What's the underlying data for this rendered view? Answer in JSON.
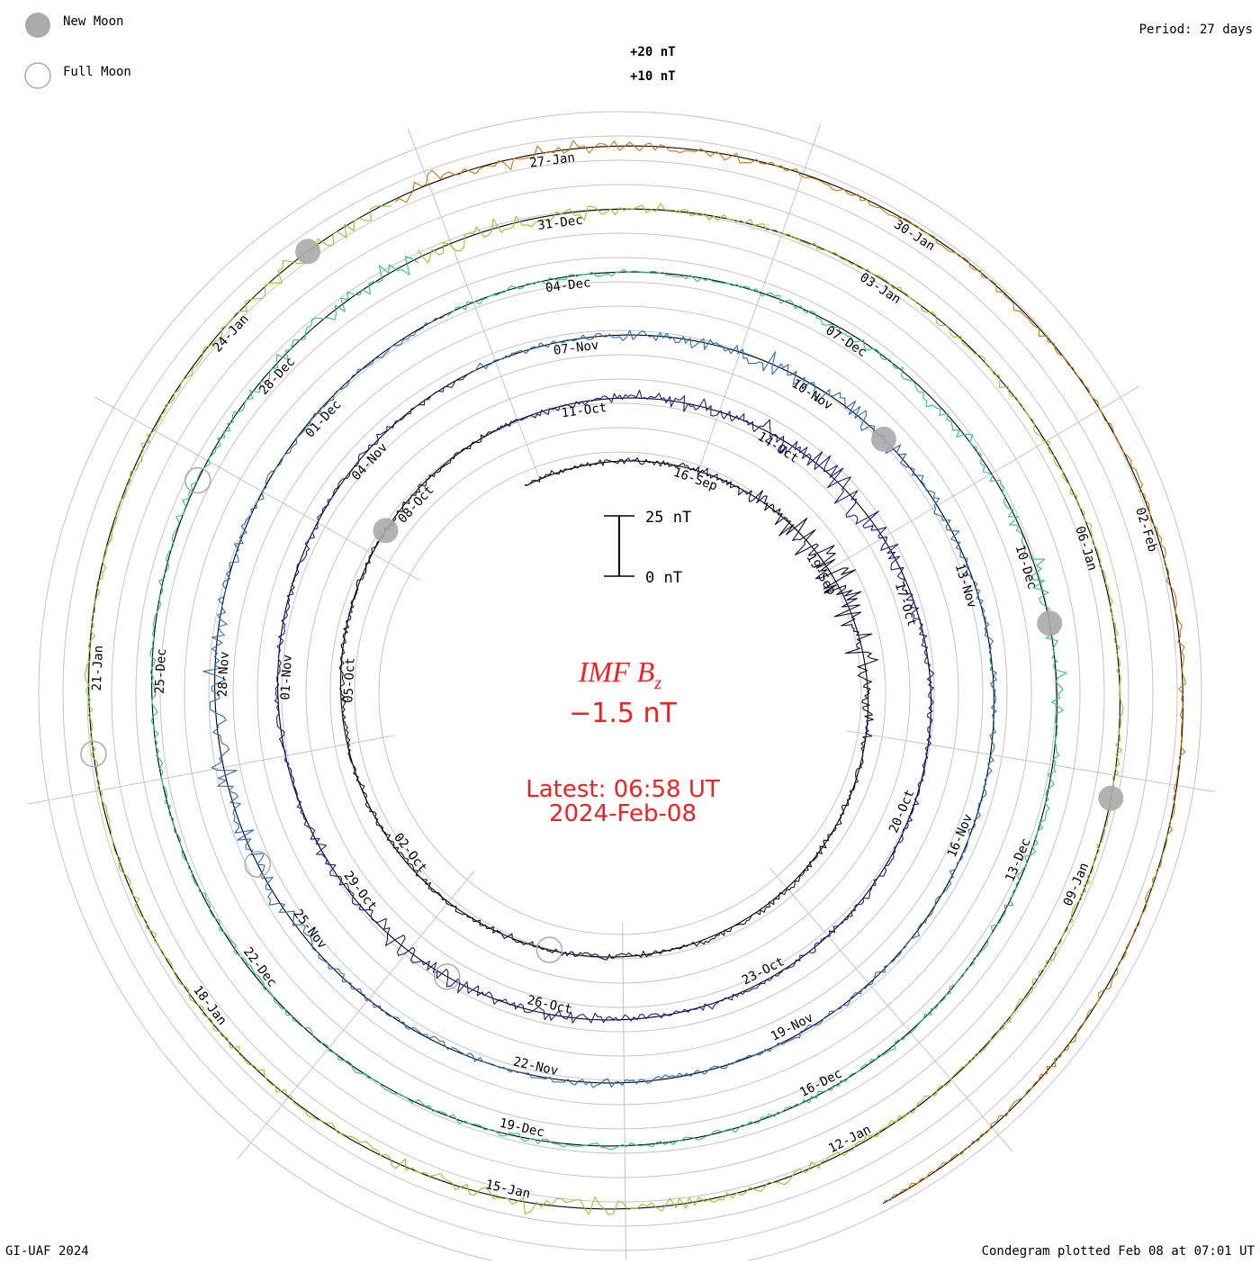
{
  "legend": {
    "new_moon_label": "New Moon",
    "full_moon_label": "Full Moon"
  },
  "period_label": "Period: 27 days",
  "scale": {
    "plus20_label": "+20 nT",
    "plus10_label": "+10 nT",
    "bar_top_label": "25 nT",
    "bar_bottom_label": "0 nT"
  },
  "center": {
    "title_main": "IMF B",
    "title_sub": "z",
    "current_value": "−1.5 nT",
    "latest_label": "Latest: 06:58 UT",
    "latest_date": "2024-Feb-08"
  },
  "footer": {
    "credit": "GI-UAF 2024",
    "plotted": "Condegram plotted Feb 08 at 07:01 UT"
  },
  "colors": {
    "title_red": "#ee2222",
    "grid": "#bbbbbb",
    "moon_fill": "#aaaaaa"
  },
  "chart_data": {
    "type": "condegram-spiral",
    "title": "IMF Bz",
    "units": "nT",
    "period_days": 27,
    "start_date": "2023-09-13",
    "end_date": "2024-02-08",
    "rings": [
      {
        "start": "2023-09-13",
        "color": "#1a0a3a"
      },
      {
        "start": "2023-10-10",
        "color": "#1c1c8c"
      },
      {
        "start": "2023-11-06",
        "color": "#2a6cb8"
      },
      {
        "start": "2023-12-03",
        "color": "#2fbf8a"
      },
      {
        "start": "2023-12-30",
        "color": "#8fc92a"
      },
      {
        "start": "2024-01-26",
        "color": "#c07a12"
      }
    ],
    "date_labels": [
      {
        "text": "16-Sep",
        "day": 3.3
      },
      {
        "text": "19-Sep",
        "day": 6.3
      },
      {
        "text": "02-Oct",
        "day": 19.3
      },
      {
        "text": "05-Oct",
        "day": 22.3
      },
      {
        "text": "08-Oct",
        "day": 25.3
      },
      {
        "text": "11-Oct",
        "day": 28.3
      },
      {
        "text": "14-Oct",
        "day": 31.3
      },
      {
        "text": "17-Oct",
        "day": 34.3
      },
      {
        "text": "20-Oct",
        "day": 37.3
      },
      {
        "text": "23-Oct",
        "day": 40.3
      },
      {
        "text": "26-Oct",
        "day": 43.3
      },
      {
        "text": "29-Oct",
        "day": 46.3
      },
      {
        "text": "01-Nov",
        "day": 49.3
      },
      {
        "text": "04-Nov",
        "day": 52.3
      },
      {
        "text": "07-Nov",
        "day": 55.3
      },
      {
        "text": "10-Nov",
        "day": 58.3
      },
      {
        "text": "13-Nov",
        "day": 61.3
      },
      {
        "text": "16-Nov",
        "day": 64.3
      },
      {
        "text": "19-Nov",
        "day": 67.3
      },
      {
        "text": "22-Nov",
        "day": 70.3
      },
      {
        "text": "25-Nov",
        "day": 73.3
      },
      {
        "text": "28-Nov",
        "day": 76.3
      },
      {
        "text": "01-Dec",
        "day": 79.3
      },
      {
        "text": "04-Dec",
        "day": 82.3
      },
      {
        "text": "07-Dec",
        "day": 85.3
      },
      {
        "text": "10-Dec",
        "day": 88.3
      },
      {
        "text": "13-Dec",
        "day": 91.3
      },
      {
        "text": "16-Dec",
        "day": 94.3
      },
      {
        "text": "19-Dec",
        "day": 97.3
      },
      {
        "text": "22-Dec",
        "day": 100.3
      },
      {
        "text": "25-Dec",
        "day": 103.3
      },
      {
        "text": "28-Dec",
        "day": 106.3
      },
      {
        "text": "31-Dec",
        "day": 109.3
      },
      {
        "text": "03-Jan",
        "day": 112.3
      },
      {
        "text": "06-Jan",
        "day": 115.3
      },
      {
        "text": "09-Jan",
        "day": 118.3
      },
      {
        "text": "12-Jan",
        "day": 121.3
      },
      {
        "text": "15-Jan",
        "day": 124.3
      },
      {
        "text": "18-Jan",
        "day": 127.3
      },
      {
        "text": "21-Jan",
        "day": 130.3
      },
      {
        "text": "24-Jan",
        "day": 133.3
      },
      {
        "text": "27-Jan",
        "day": 136.3
      },
      {
        "text": "30-Jan",
        "day": 139.3
      },
      {
        "text": "02-Feb",
        "day": 142.3
      }
    ],
    "new_moons": [
      {
        "day": 24.7
      },
      {
        "day": 59.3
      },
      {
        "day": 88.9
      },
      {
        "day": 117.5
      },
      {
        "day": 134.2
      }
    ],
    "full_moons": [
      {
        "day": 16.5
      },
      {
        "day": 44.7
      },
      {
        "day": 74.2
      },
      {
        "day": 105.1
      },
      {
        "day": 129.6
      }
    ],
    "activity": [
      {
        "day": 6.5,
        "amp": 5
      },
      {
        "day": 32.0,
        "amp": 4
      },
      {
        "day": 45.0,
        "amp": 2.5
      },
      {
        "day": 58.5,
        "amp": 3
      },
      {
        "day": 75.0,
        "amp": 3.5
      },
      {
        "day": 88.0,
        "amp": 2.5
      },
      {
        "day": 108.0,
        "amp": 2.5
      },
      {
        "day": 124.0,
        "amp": 2
      },
      {
        "day": 135.0,
        "amp": 2.5
      }
    ]
  }
}
